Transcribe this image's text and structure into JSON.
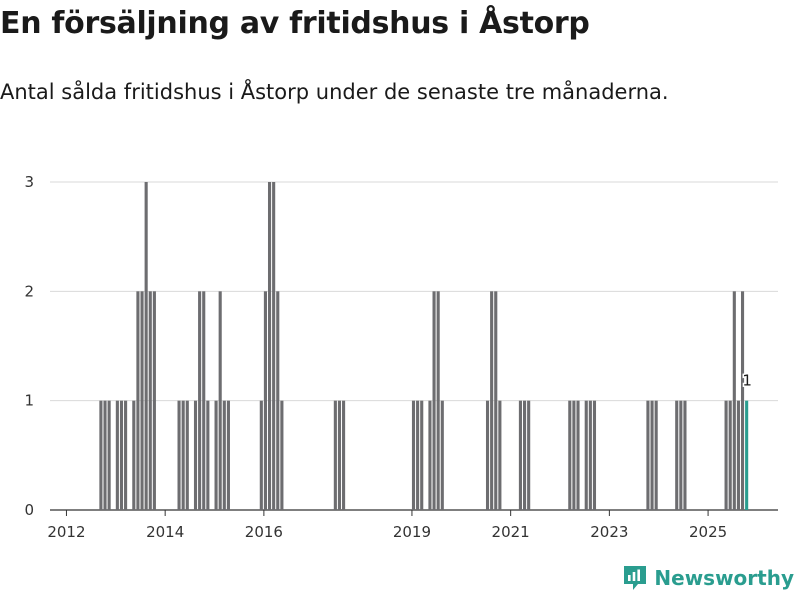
{
  "title": "En försäljning av fritidshus i Åstorp",
  "subtitle": "Antal sålda fritidshus i Åstorp under de senaste tre månaderna.",
  "brand": {
    "name": "Newsworthy",
    "color": "#2a9d8f"
  },
  "chart_data": {
    "type": "bar",
    "x_ticks": [
      "2012",
      "2014",
      "2016",
      "2019",
      "2021",
      "2023",
      "2025"
    ],
    "y_ticks": [
      0,
      1,
      2,
      3
    ],
    "ylim": [
      0,
      3
    ],
    "xlim": [
      "2011-09",
      "2026-06"
    ],
    "grid": true,
    "bar_color": "#6d6d70",
    "highlight_color": "#2a9d8f",
    "x": [
      "2012-09",
      "2012-10",
      "2012-11",
      "2013-01",
      "2013-02",
      "2013-03",
      "2013-05",
      "2013-06",
      "2013-07",
      "2013-08",
      "2013-09",
      "2013-10",
      "2014-04",
      "2014-05",
      "2014-06",
      "2014-08",
      "2014-09",
      "2014-10",
      "2014-11",
      "2015-01",
      "2015-02",
      "2015-03",
      "2015-04",
      "2015-12",
      "2016-01",
      "2016-02",
      "2016-03",
      "2016-04",
      "2016-05",
      "2017-06",
      "2017-07",
      "2017-08",
      "2019-01",
      "2019-02",
      "2019-03",
      "2019-05",
      "2019-06",
      "2019-07",
      "2019-08",
      "2020-07",
      "2020-08",
      "2020-09",
      "2020-10",
      "2021-03",
      "2021-04",
      "2021-05",
      "2022-03",
      "2022-04",
      "2022-05",
      "2022-07",
      "2022-08",
      "2022-09",
      "2023-10",
      "2023-11",
      "2023-12",
      "2024-05",
      "2024-06",
      "2024-07",
      "2025-05",
      "2025-06",
      "2025-07",
      "2025-08",
      "2025-09",
      "2025-10"
    ],
    "values": [
      1,
      1,
      1,
      1,
      1,
      1,
      1,
      2,
      2,
      3,
      2,
      2,
      1,
      1,
      1,
      1,
      2,
      2,
      1,
      1,
      2,
      1,
      1,
      1,
      2,
      3,
      3,
      2,
      1,
      1,
      1,
      1,
      1,
      1,
      1,
      1,
      2,
      2,
      1,
      1,
      2,
      2,
      1,
      1,
      1,
      1,
      1,
      1,
      1,
      1,
      1,
      1,
      1,
      1,
      1,
      1,
      1,
      1,
      1,
      1,
      2,
      1,
      2,
      1
    ],
    "highlight": {
      "x": "2025-10",
      "value": 1,
      "label": "1"
    }
  }
}
